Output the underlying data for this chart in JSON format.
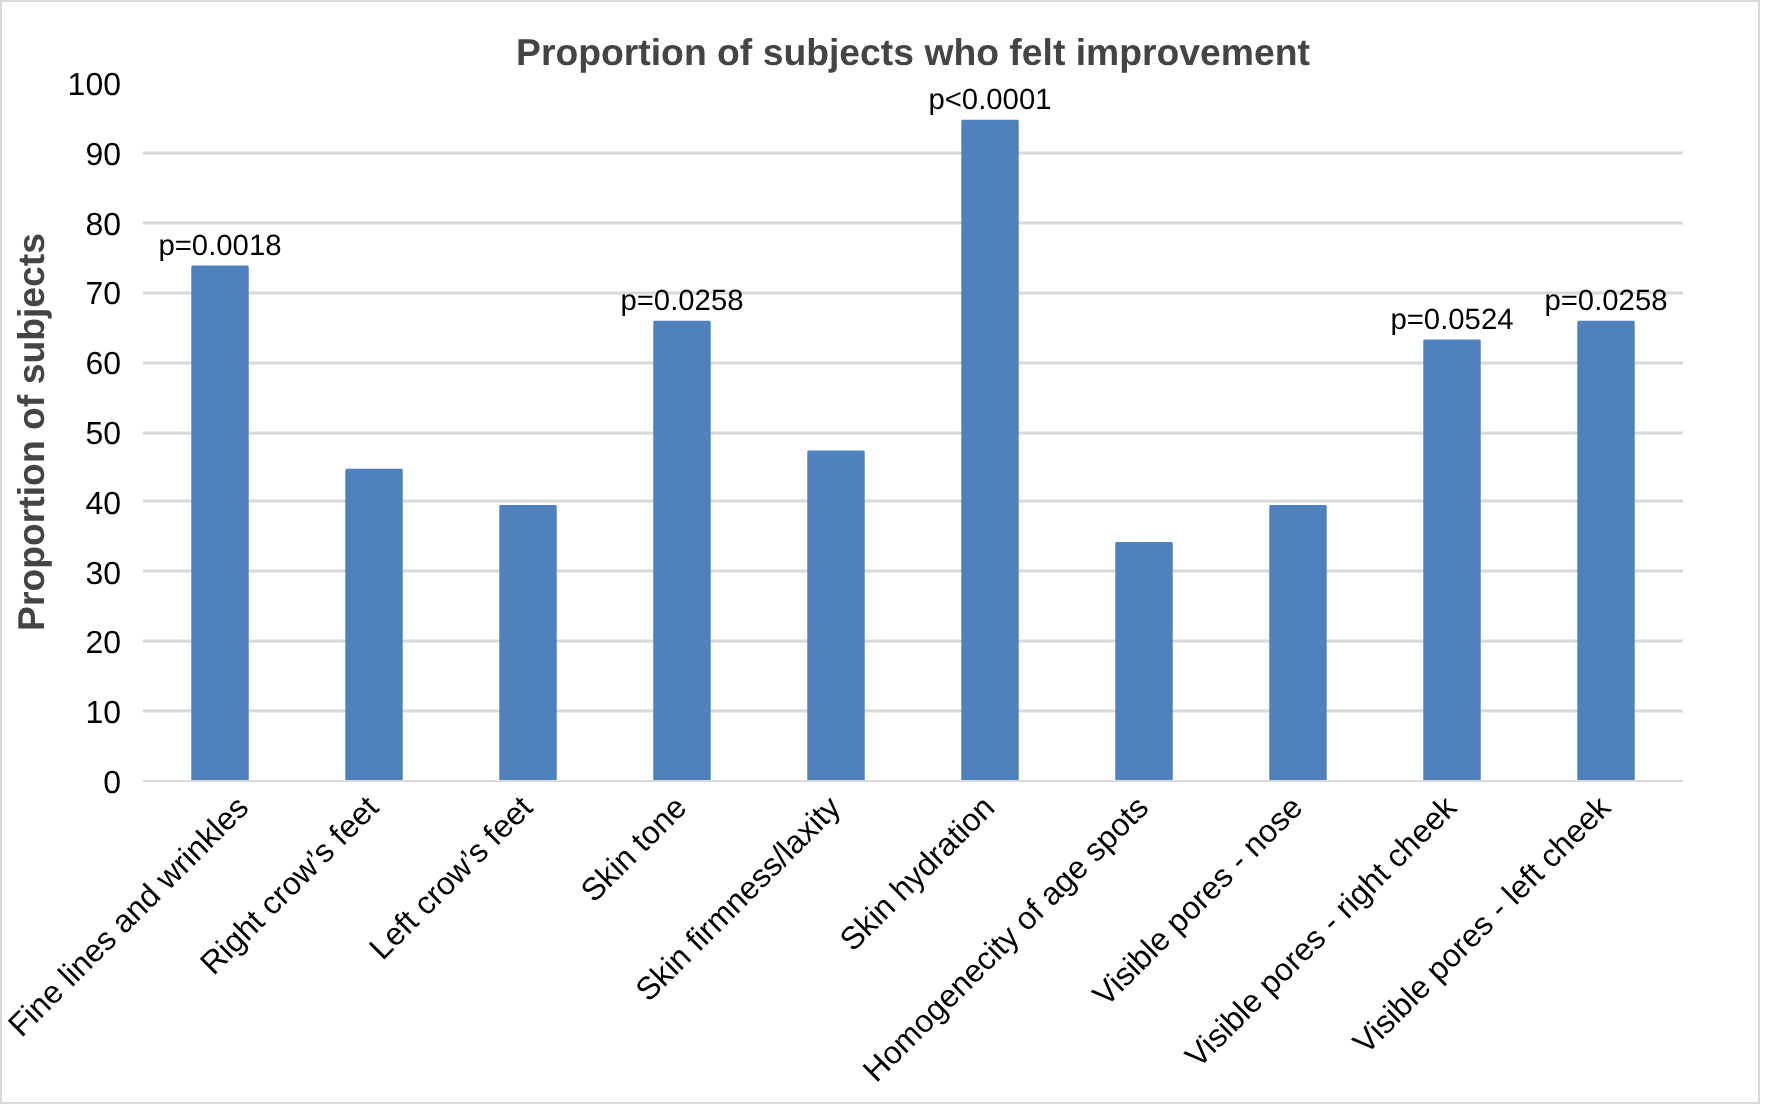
{
  "chart_data": {
    "type": "bar",
    "title": "Proportion of subjects who felt improvement",
    "ylabel": "Proportion of subjects",
    "categories": [
      "Fine lines and wrinkles",
      "Right crow’s feet",
      "Left crow’s feet",
      "Skin tone",
      "Skin firmness/laxity",
      "Skin hydration",
      "Homogenecity of age spots",
      "Visible pores - nose",
      "Visible pores - right cheek",
      "Visible pores - left cheek"
    ],
    "values": [
      73.7,
      44.6,
      39.4,
      65.8,
      47.2,
      94.6,
      34.1,
      39.4,
      63.1,
      65.8
    ],
    "color": "#4f81bd",
    "ylim": [
      0,
      100
    ],
    "yticks": [
      0,
      10,
      20,
      30,
      40,
      50,
      60,
      70,
      80,
      90,
      100
    ],
    "grid": "y",
    "annotations": [
      {
        "text": "p=0.0018",
        "x": "Fine lines and wrinkles",
        "y": 73.7
      },
      {
        "text": "p=0.0258",
        "x": "Skin tone",
        "y": 65.8
      },
      {
        "text": "p<0.0001",
        "x": "Skin hydration",
        "y": 94.6
      },
      {
        "text": "p=0.0524",
        "x": "Visible pores - right cheek",
        "y": 63.1
      },
      {
        "text": "p=0.0258",
        "x": "Visible pores - left cheek",
        "y": 65.8
      }
    ]
  }
}
